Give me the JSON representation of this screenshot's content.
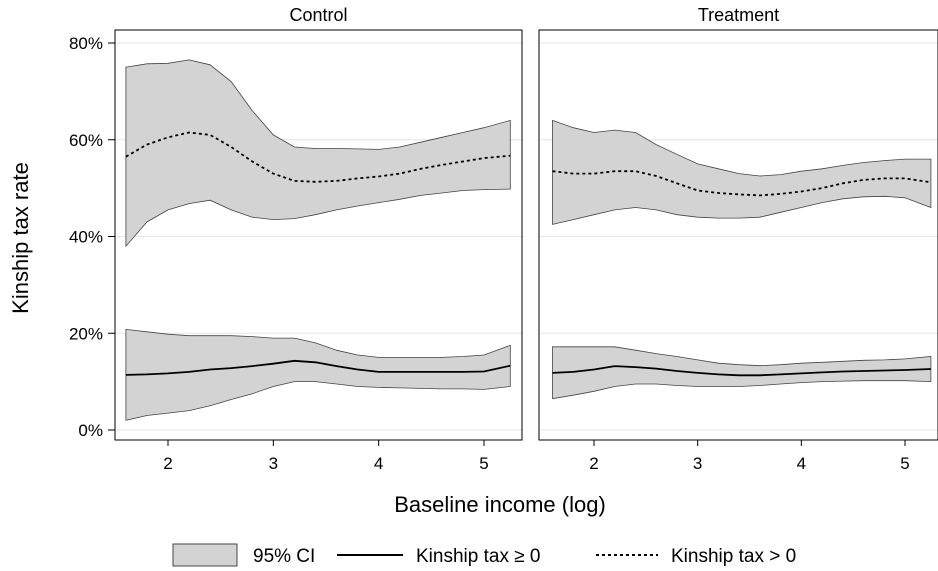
{
  "chart_data": {
    "type": "line",
    "ylabel": "Kinship tax rate",
    "xlabel": "Baseline income (log)",
    "ylim": [
      0,
      0.8
    ],
    "yticks": [
      0,
      0.2,
      0.4,
      0.6,
      0.8
    ],
    "ytick_labels": [
      "0%",
      "20%",
      "40%",
      "60%",
      "80%"
    ],
    "xticks": [
      2,
      3,
      4,
      5
    ],
    "xtick_labels": [
      "2",
      "3",
      "4",
      "5"
    ],
    "grid": "horizontal",
    "legend": {
      "placement": "bottom",
      "entries": [
        {
          "label": "95% CI",
          "style": "band"
        },
        {
          "label": "Kinship tax ≥ 0",
          "style": "solid"
        },
        {
          "label": "Kinship tax > 0",
          "style": "dotted"
        }
      ]
    },
    "colors": {
      "band_fill": "#d3d3d3",
      "band_edge": "#444444",
      "line": "#000000",
      "grid": "#e6e6e6"
    },
    "panels": [
      {
        "title": "Control",
        "xlim": [
          1.55,
          5.4
        ],
        "series": [
          {
            "name": "Kinship tax > 0",
            "style": "dotted",
            "x": [
              1.6,
              1.8,
              2.0,
              2.2,
              2.4,
              2.6,
              2.8,
              3.0,
              3.2,
              3.4,
              3.6,
              3.8,
              4.0,
              4.2,
              4.4,
              4.6,
              4.8,
              5.0,
              5.25
            ],
            "y": [
              0.565,
              0.59,
              0.605,
              0.615,
              0.61,
              0.585,
              0.555,
              0.53,
              0.515,
              0.513,
              0.515,
              0.52,
              0.524,
              0.53,
              0.54,
              0.548,
              0.555,
              0.562,
              0.567
            ],
            "ci_lower": [
              0.38,
              0.43,
              0.455,
              0.468,
              0.475,
              0.455,
              0.44,
              0.435,
              0.437,
              0.445,
              0.455,
              0.463,
              0.47,
              0.477,
              0.485,
              0.49,
              0.495,
              0.497,
              0.498
            ],
            "ci_upper": [
              0.75,
              0.757,
              0.758,
              0.765,
              0.755,
              0.72,
              0.66,
              0.61,
              0.585,
              0.582,
              0.582,
              0.581,
              0.58,
              0.585,
              0.595,
              0.605,
              0.615,
              0.625,
              0.64
            ]
          },
          {
            "name": "Kinship tax ≥ 0",
            "style": "solid",
            "x": [
              1.6,
              1.8,
              2.0,
              2.2,
              2.4,
              2.6,
              2.8,
              3.0,
              3.2,
              3.4,
              3.6,
              3.8,
              4.0,
              4.2,
              4.4,
              4.6,
              4.8,
              5.0,
              5.25
            ],
            "y": [
              0.114,
              0.115,
              0.117,
              0.12,
              0.125,
              0.128,
              0.132,
              0.137,
              0.143,
              0.14,
              0.132,
              0.125,
              0.12,
              0.12,
              0.12,
              0.12,
              0.12,
              0.121,
              0.133
            ],
            "ci_lower": [
              0.02,
              0.03,
              0.035,
              0.04,
              0.05,
              0.063,
              0.075,
              0.09,
              0.1,
              0.1,
              0.095,
              0.09,
              0.088,
              0.087,
              0.086,
              0.085,
              0.085,
              0.084,
              0.09
            ],
            "ci_upper": [
              0.208,
              0.203,
              0.198,
              0.195,
              0.195,
              0.195,
              0.193,
              0.19,
              0.19,
              0.18,
              0.165,
              0.155,
              0.15,
              0.15,
              0.15,
              0.15,
              0.152,
              0.155,
              0.175
            ]
          }
        ]
      },
      {
        "title": "Treatment",
        "xlim": [
          1.55,
          5.4
        ],
        "series": [
          {
            "name": "Kinship tax > 0",
            "style": "dotted",
            "x": [
              1.6,
              1.8,
              2.0,
              2.2,
              2.4,
              2.6,
              2.8,
              3.0,
              3.2,
              3.4,
              3.6,
              3.8,
              4.0,
              4.2,
              4.4,
              4.6,
              4.8,
              5.0,
              5.25
            ],
            "y": [
              0.535,
              0.53,
              0.53,
              0.535,
              0.535,
              0.525,
              0.51,
              0.495,
              0.49,
              0.487,
              0.485,
              0.488,
              0.493,
              0.5,
              0.51,
              0.517,
              0.52,
              0.52,
              0.512
            ],
            "ci_lower": [
              0.425,
              0.435,
              0.445,
              0.455,
              0.46,
              0.455,
              0.445,
              0.44,
              0.438,
              0.438,
              0.44,
              0.45,
              0.46,
              0.47,
              0.478,
              0.482,
              0.483,
              0.48,
              0.46
            ],
            "ci_upper": [
              0.64,
              0.625,
              0.615,
              0.62,
              0.615,
              0.59,
              0.57,
              0.55,
              0.54,
              0.53,
              0.525,
              0.528,
              0.535,
              0.54,
              0.547,
              0.553,
              0.557,
              0.56,
              0.56
            ]
          },
          {
            "name": "Kinship tax ≥ 0",
            "style": "solid",
            "x": [
              1.6,
              1.8,
              2.0,
              2.2,
              2.4,
              2.6,
              2.8,
              3.0,
              3.2,
              3.4,
              3.6,
              3.8,
              4.0,
              4.2,
              4.4,
              4.6,
              4.8,
              5.0,
              5.25
            ],
            "y": [
              0.118,
              0.12,
              0.125,
              0.132,
              0.13,
              0.127,
              0.122,
              0.118,
              0.115,
              0.113,
              0.113,
              0.115,
              0.117,
              0.119,
              0.121,
              0.122,
              0.123,
              0.124,
              0.126
            ],
            "ci_lower": [
              0.065,
              0.072,
              0.08,
              0.09,
              0.095,
              0.095,
              0.092,
              0.09,
              0.09,
              0.09,
              0.092,
              0.095,
              0.098,
              0.1,
              0.101,
              0.102,
              0.102,
              0.102,
              0.1
            ],
            "ci_upper": [
              0.172,
              0.172,
              0.172,
              0.172,
              0.165,
              0.158,
              0.152,
              0.145,
              0.138,
              0.135,
              0.133,
              0.135,
              0.138,
              0.14,
              0.142,
              0.144,
              0.145,
              0.147,
              0.152
            ]
          }
        ]
      }
    ]
  }
}
